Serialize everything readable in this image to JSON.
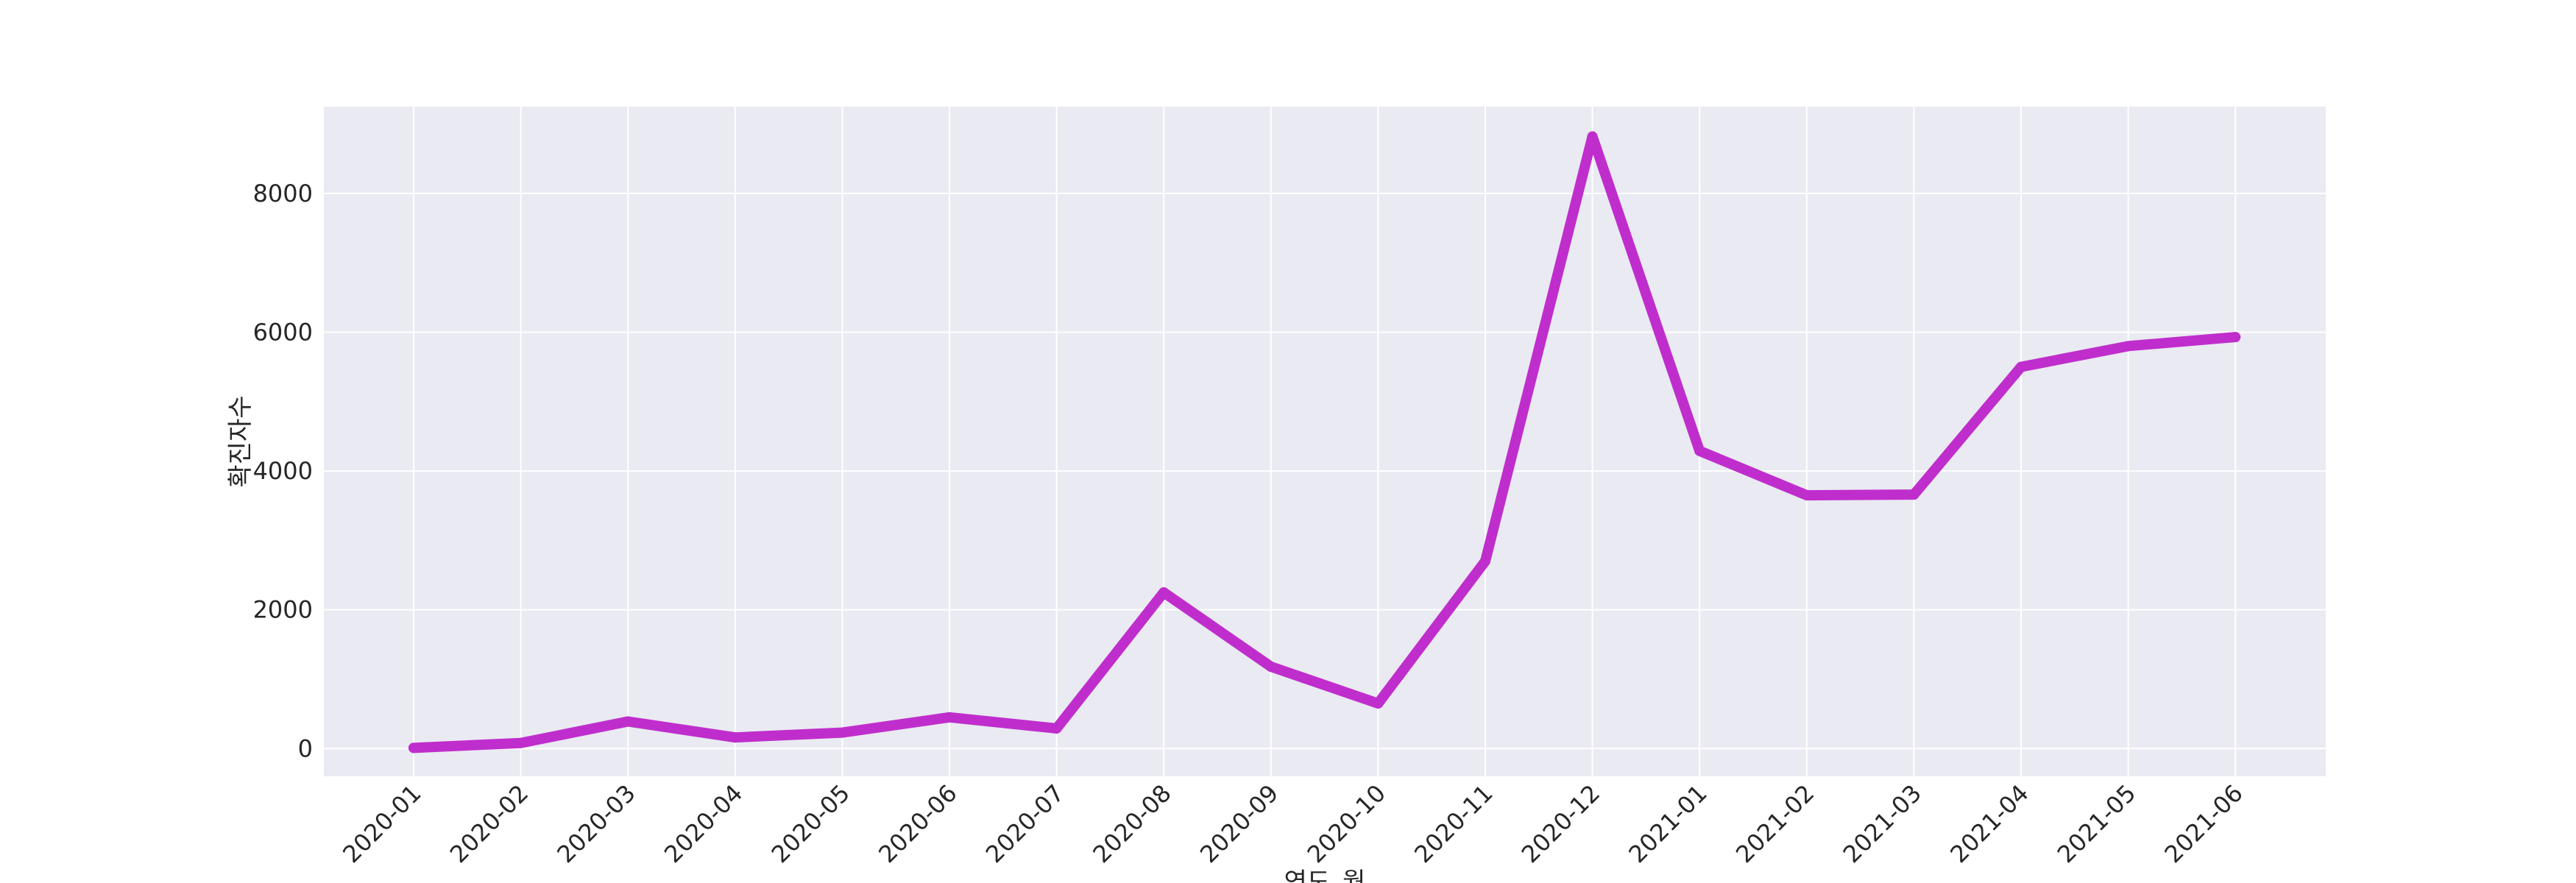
{
  "chart_data": {
    "type": "line",
    "title": "",
    "xlabel": "연도_월",
    "ylabel": "확진자수",
    "categories": [
      "2020-01",
      "2020-02",
      "2020-03",
      "2020-04",
      "2020-05",
      "2020-06",
      "2020-07",
      "2020-08",
      "2020-09",
      "2020-10",
      "2020-11",
      "2020-12",
      "2021-01",
      "2021-02",
      "2021-03",
      "2021-04",
      "2021-05",
      "2021-06"
    ],
    "series": [
      {
        "values": [
          10,
          80,
          390,
          160,
          230,
          450,
          290,
          2250,
          1180,
          650,
          2700,
          8820,
          4290,
          3650,
          3660,
          5500,
          5800,
          5930
        ]
      }
    ],
    "yticks": [
      0,
      2000,
      4000,
      6000,
      8000
    ],
    "ylim": [
      -400,
      9250
    ],
    "grid": true,
    "colors": {
      "line": "#bf2ecc",
      "plot_bg": "#eaeaf2",
      "grid": "#ffffff"
    }
  }
}
